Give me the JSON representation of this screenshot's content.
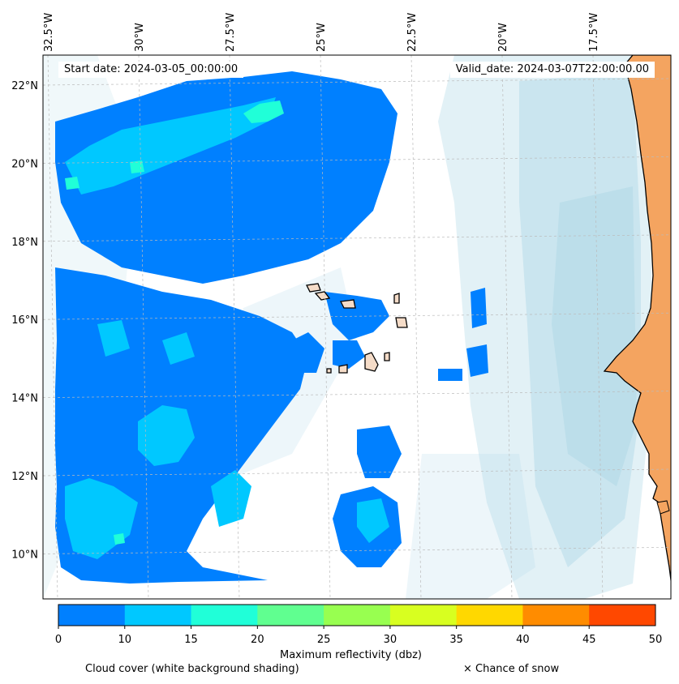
{
  "header": {
    "start_label": "Start date: 2024-03-05_00:00:00",
    "valid_label": "Valid_date: 2024-03-07T22:00:00.00"
  },
  "axes": {
    "lon_ticks": [
      {
        "value": -32.5,
        "label": "32.5°W"
      },
      {
        "value": -30.0,
        "label": "30°W"
      },
      {
        "value": -27.5,
        "label": "27.5°W"
      },
      {
        "value": -25.0,
        "label": "25°W"
      },
      {
        "value": -22.5,
        "label": "22.5°W"
      },
      {
        "value": -20.0,
        "label": "20°W"
      },
      {
        "value": -17.5,
        "label": "17.5°W"
      }
    ],
    "lat_ticks": [
      {
        "value": 22,
        "label": "22°N"
      },
      {
        "value": 20,
        "label": "20°N"
      },
      {
        "value": 18,
        "label": "18°N"
      },
      {
        "value": 16,
        "label": "16°N"
      },
      {
        "value": 14,
        "label": "14°N"
      },
      {
        "value": 12,
        "label": "12°N"
      },
      {
        "value": 10,
        "label": "10°N"
      }
    ]
  },
  "colorbar": {
    "label": "Maximum reflectivity (dbz)",
    "ticks": [
      "0",
      "10",
      "15",
      "20",
      "25",
      "30",
      "35",
      "40",
      "45",
      "50"
    ],
    "colors": [
      "#0080ff",
      "#00c8ff",
      "#20ffd8",
      "#60ff90",
      "#98ff50",
      "#d8ff20",
      "#ffd800",
      "#ff8c00",
      "#ff4800"
    ]
  },
  "legend": {
    "cloud_label": "Cloud cover (white background shading)",
    "snow_label": "× Chance of snow"
  },
  "colors": {
    "land": "#f4a460",
    "cloud_shading": "#add8e6",
    "island": "#f5dcc8"
  }
}
